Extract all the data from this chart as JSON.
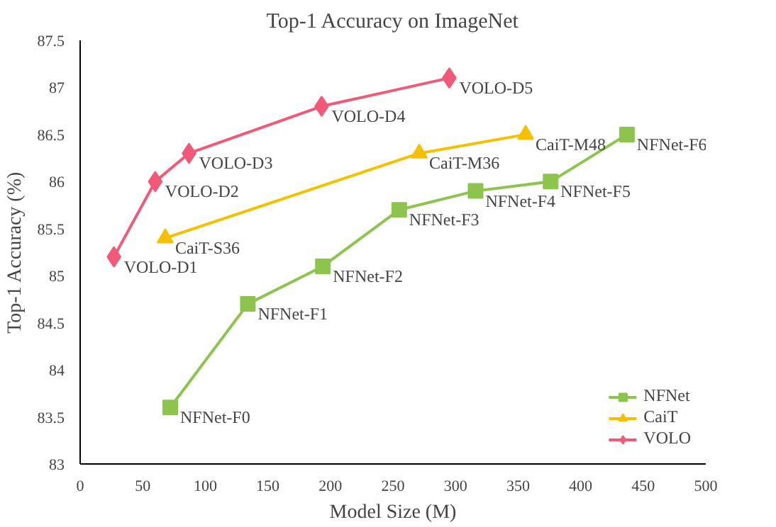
{
  "chart_data": {
    "type": "line",
    "title": "Top-1 Accuracy on ImageNet",
    "xlabel": "Model Size (M)",
    "ylabel": "Top-1 Accuracy (%)",
    "xlim": [
      0,
      500
    ],
    "xticks": [
      0,
      50,
      100,
      150,
      200,
      250,
      300,
      350,
      400,
      450,
      500
    ],
    "ylim": [
      83,
      87.5
    ],
    "yticks": [
      83,
      83.5,
      84,
      84.5,
      85,
      85.5,
      86,
      86.5,
      87,
      87.5
    ],
    "grid": false,
    "legend": "bottom right",
    "line_style": "solid",
    "series": [
      {
        "name": "NFNet",
        "color": "#8dc44e",
        "marker": "square",
        "x": [
          72,
          134,
          194,
          255,
          316,
          376,
          437
        ],
        "values": [
          83.6,
          84.7,
          85.1,
          85.7,
          85.9,
          86.0,
          86.5
        ]
      },
      {
        "name": "CaiT",
        "color": "#f5c000",
        "marker": "triangle",
        "x": [
          68,
          271,
          356
        ],
        "values": [
          85.4,
          86.3,
          86.5
        ]
      },
      {
        "name": "VOLO",
        "color": "#f05a78",
        "marker": "diamond",
        "x": [
          27,
          60,
          87,
          193,
          295
        ],
        "values": [
          85.2,
          86.0,
          86.3,
          86.8,
          87.1
        ]
      }
    ],
    "annotations": [
      {
        "text": "NFNet-F0",
        "x": 72,
        "y": 83.6
      },
      {
        "text": "NFNet-F1",
        "x": 134,
        "y": 84.7
      },
      {
        "text": "NFNet-F2",
        "x": 194,
        "y": 85.1
      },
      {
        "text": "NFNet-F3",
        "x": 255,
        "y": 85.7
      },
      {
        "text": "NFNet-F4",
        "x": 316,
        "y": 85.9
      },
      {
        "text": "NFNet-F5",
        "x": 376,
        "y": 86.0
      },
      {
        "text": "NFNet-F6",
        "x": 437,
        "y": 86.5
      },
      {
        "text": "CaiT-S36",
        "x": 68,
        "y": 85.4
      },
      {
        "text": "CaiT-M36",
        "x": 271,
        "y": 86.3
      },
      {
        "text": "CaiT-M48",
        "x": 356,
        "y": 86.5
      },
      {
        "text": "VOLO-D1",
        "x": 27,
        "y": 85.2
      },
      {
        "text": "VOLO-D2",
        "x": 60,
        "y": 86.0
      },
      {
        "text": "VOLO-D3",
        "x": 87,
        "y": 86.3
      },
      {
        "text": "VOLO-D4",
        "x": 193,
        "y": 86.8
      },
      {
        "text": "VOLO-D5",
        "x": 295,
        "y": 87.1
      }
    ]
  }
}
